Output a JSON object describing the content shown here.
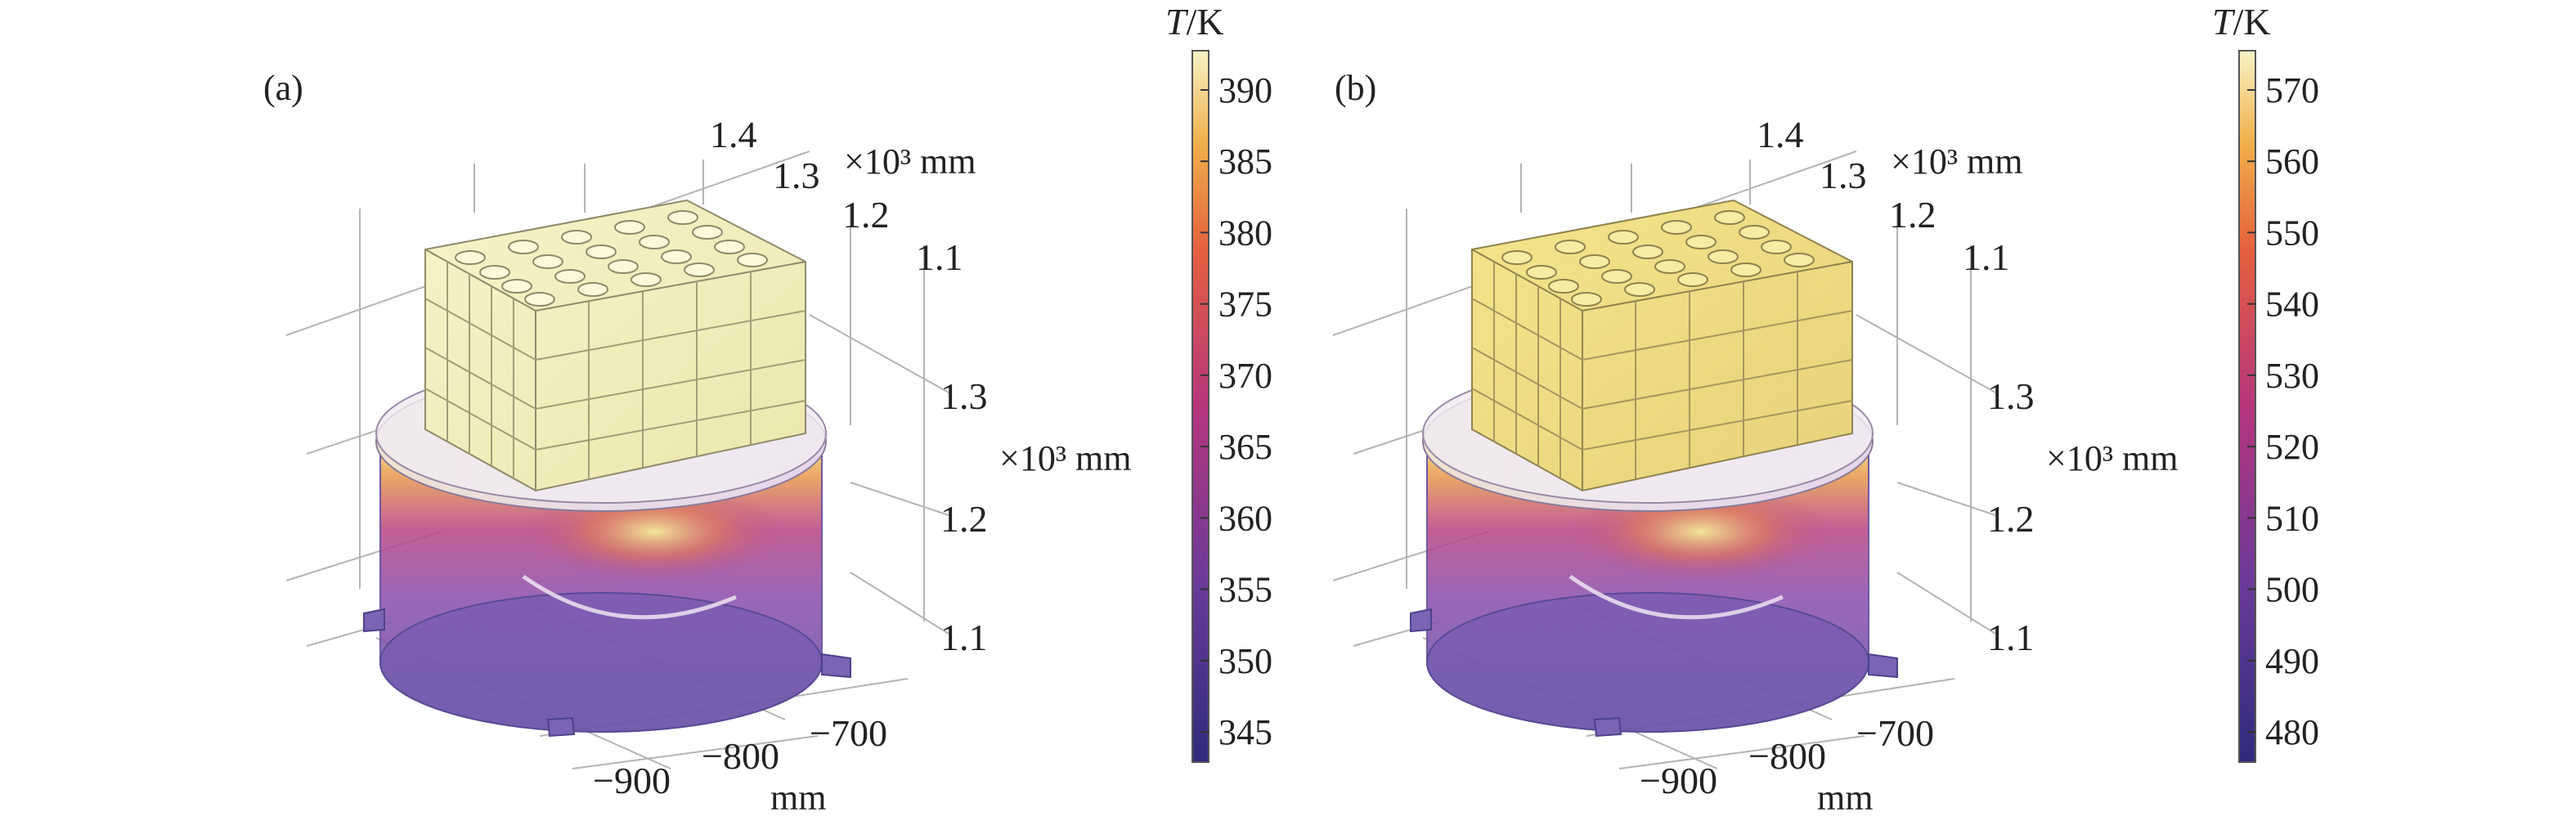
{
  "panels": [
    {
      "label": "(a)",
      "axis_top_ticks": [
        "1.4",
        "1.3",
        "1.2",
        "1.1"
      ],
      "axis_top_unit": "×10³ mm",
      "axis_right_ticks": [
        "1.3",
        "1.2",
        "1.1"
      ],
      "axis_right_unit": "×10³ mm",
      "axis_bottom_ticks": [
        "−900",
        "−800",
        "−700"
      ],
      "axis_bottom_unit": "mm",
      "colorbar": {
        "title_var": "T",
        "title_unit": "/K",
        "ticks": [
          "390",
          "385",
          "380",
          "375",
          "370",
          "365",
          "360",
          "355",
          "350",
          "345"
        ]
      }
    },
    {
      "label": "(b)",
      "axis_top_ticks": [
        "1.4",
        "1.3",
        "1.2",
        "1.1"
      ],
      "axis_top_unit": "×10³ mm",
      "axis_right_ticks": [
        "1.3",
        "1.2",
        "1.1"
      ],
      "axis_right_unit": "×10³ mm",
      "axis_bottom_ticks": [
        "−900",
        "−800",
        "−700"
      ],
      "axis_bottom_unit": "mm",
      "colorbar": {
        "title_var": "T",
        "title_unit": "/K",
        "ticks": [
          "570",
          "560",
          "550",
          "540",
          "530",
          "520",
          "510",
          "500",
          "490",
          "480"
        ]
      }
    }
  ],
  "colors": {
    "cold": "#3b2f85",
    "mid": "#b8337a",
    "warm": "#e8823a",
    "hot": "#f6f0b8"
  }
}
